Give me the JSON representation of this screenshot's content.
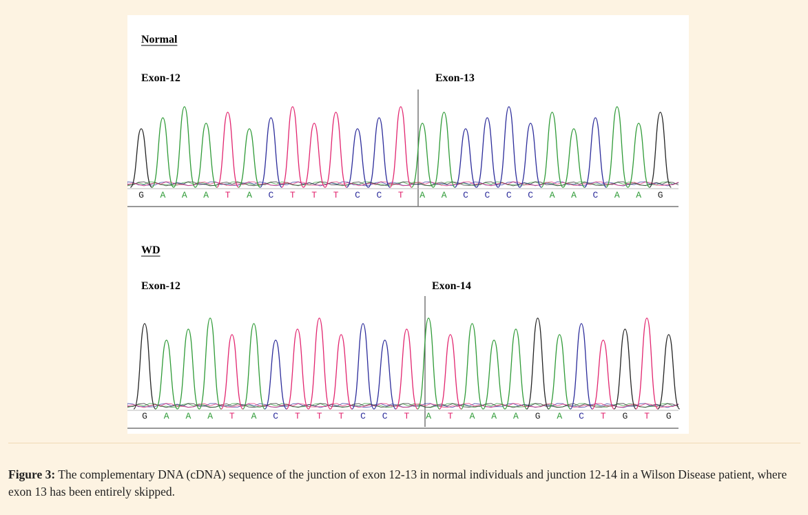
{
  "panels": [
    {
      "title": "Normal",
      "exon_left": "Exon-12",
      "exon_right": "Exon-13",
      "sequence": [
        "G",
        "A",
        "A",
        "A",
        "T",
        "A",
        "C",
        "T",
        "T",
        "T",
        "C",
        "C",
        "T",
        "A",
        "A",
        "C",
        "C",
        "C",
        "C",
        "A",
        "A",
        "C",
        "A",
        "A",
        "G"
      ]
    },
    {
      "title": "WD",
      "exon_left": "Exon-12",
      "exon_right": "Exon-14",
      "sequence": [
        "G",
        "A",
        "A",
        "A",
        "T",
        "A",
        "C",
        "T",
        "T",
        "T",
        "C",
        "C",
        "T",
        "A",
        "T",
        "A",
        "A",
        "A",
        "G",
        "A",
        "C",
        "T",
        "G",
        "T",
        "G"
      ]
    }
  ],
  "caption": {
    "label": "Figure 3:",
    "text": "The complementary DNA (cDNA) sequence of the junction of exon 12-13 in normal individuals and junction 12-14 in a Wilson Disease patient, where exon 13 has been entirely skipped."
  }
}
